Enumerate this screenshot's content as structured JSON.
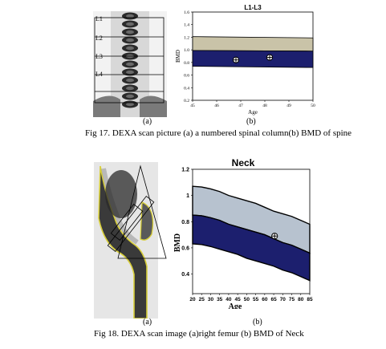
{
  "fig17": {
    "label_a": "(a)",
    "label_b": "(b)",
    "caption": "Fig 17. DEXA scan picture (a) a numbered spinal column(b) BMD of spine",
    "vertebrae": [
      "L1",
      "L2",
      "L3",
      "L4"
    ]
  },
  "fig18": {
    "label_a": "(a)",
    "label_b": "(b)",
    "caption": "Fig 18.   DEXA scan image (a)right femur (b) BMD of Neck"
  },
  "chart_data": [
    {
      "type": "area",
      "title": "L1-L3",
      "xlabel": "Age",
      "ylabel": "BMD",
      "x_ticks": [
        "45",
        "46",
        "47",
        "48",
        "49",
        "50"
      ],
      "y_ticks": [
        "0.2",
        "0.4",
        "0.6",
        "0.8",
        "1.0",
        "1.2",
        "1.4",
        "1.6"
      ],
      "xlim": [
        45,
        50
      ],
      "ylim": [
        0.2,
        1.6
      ],
      "bands": {
        "upper_band": {
          "x": [
            45,
            50
          ],
          "top": [
            1.21,
            1.19
          ],
          "bottom": [
            0.99,
            0.98
          ]
        },
        "lower_band": {
          "x": [
            45,
            50
          ],
          "top": [
            0.99,
            0.98
          ],
          "bottom": [
            0.74,
            0.72
          ]
        }
      },
      "points": [
        {
          "x": 46.8,
          "y": 0.84
        },
        {
          "x": 48.2,
          "y": 0.88
        }
      ],
      "colors": {
        "upper_band": "#c9c3a8",
        "lower_band": "#1c1f6e"
      }
    },
    {
      "type": "area",
      "title": "Neck",
      "xlabel": "Age",
      "ylabel": "BMD",
      "x_ticks": [
        "20",
        "25",
        "30",
        "35",
        "40",
        "45",
        "50",
        "55",
        "60",
        "65",
        "70",
        "75",
        "80",
        "85"
      ],
      "y_ticks": [
        "0.4",
        "0.6",
        "0.8",
        "1",
        "1.2"
      ],
      "xlim": [
        20,
        85
      ],
      "ylim": [
        0.25,
        1.2
      ],
      "bands": {
        "upper_band": {
          "x": [
            20,
            25,
            30,
            35,
            40,
            45,
            50,
            55,
            60,
            65,
            70,
            75,
            80,
            85
          ],
          "top": [
            1.07,
            1.065,
            1.05,
            1.03,
            1.0,
            0.98,
            0.96,
            0.94,
            0.91,
            0.88,
            0.86,
            0.84,
            0.81,
            0.78
          ]
        },
        "middle": {
          "x": [
            20,
            25,
            30,
            35,
            40,
            45,
            50,
            55,
            60,
            65,
            70,
            75,
            80,
            85
          ],
          "y": [
            0.85,
            0.845,
            0.83,
            0.81,
            0.78,
            0.76,
            0.74,
            0.72,
            0.7,
            0.67,
            0.64,
            0.62,
            0.59,
            0.56
          ]
        },
        "lower_band": {
          "x": [
            20,
            25,
            30,
            35,
            40,
            45,
            50,
            55,
            60,
            65,
            70,
            75,
            80,
            85
          ],
          "bottom": [
            0.63,
            0.625,
            0.61,
            0.59,
            0.57,
            0.55,
            0.52,
            0.5,
            0.48,
            0.46,
            0.43,
            0.41,
            0.38,
            0.35
          ]
        }
      },
      "points": [
        {
          "x": 65.5,
          "y": 0.69
        }
      ],
      "colors": {
        "upper_band": "#b7c2cf",
        "lower_band": "#1c1f6e"
      }
    }
  ]
}
